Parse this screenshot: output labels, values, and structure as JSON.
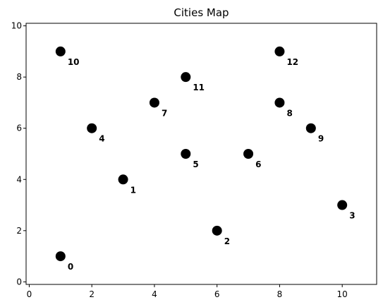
{
  "chart_data": {
    "type": "scatter",
    "title": "Cities Map",
    "xlabel": "",
    "ylabel": "",
    "xlim": [
      -0.1,
      11.1
    ],
    "ylim": [
      -0.1,
      10.1
    ],
    "x_ticks": [
      0,
      2,
      4,
      6,
      8,
      10
    ],
    "y_ticks": [
      0,
      2,
      4,
      6,
      8,
      10
    ],
    "grid": false,
    "marker_color": "#000000",
    "points": [
      {
        "label": "0",
        "x": 1,
        "y": 1
      },
      {
        "label": "1",
        "x": 3,
        "y": 4
      },
      {
        "label": "2",
        "x": 6,
        "y": 2
      },
      {
        "label": "3",
        "x": 10,
        "y": 3
      },
      {
        "label": "4",
        "x": 2,
        "y": 6
      },
      {
        "label": "5",
        "x": 5,
        "y": 5
      },
      {
        "label": "6",
        "x": 7,
        "y": 5
      },
      {
        "label": "7",
        "x": 4,
        "y": 7
      },
      {
        "label": "8",
        "x": 8,
        "y": 7
      },
      {
        "label": "9",
        "x": 9,
        "y": 6
      },
      {
        "label": "10",
        "x": 1,
        "y": 9
      },
      {
        "label": "11",
        "x": 5,
        "y": 8
      },
      {
        "label": "12",
        "x": 8,
        "y": 9
      }
    ]
  }
}
